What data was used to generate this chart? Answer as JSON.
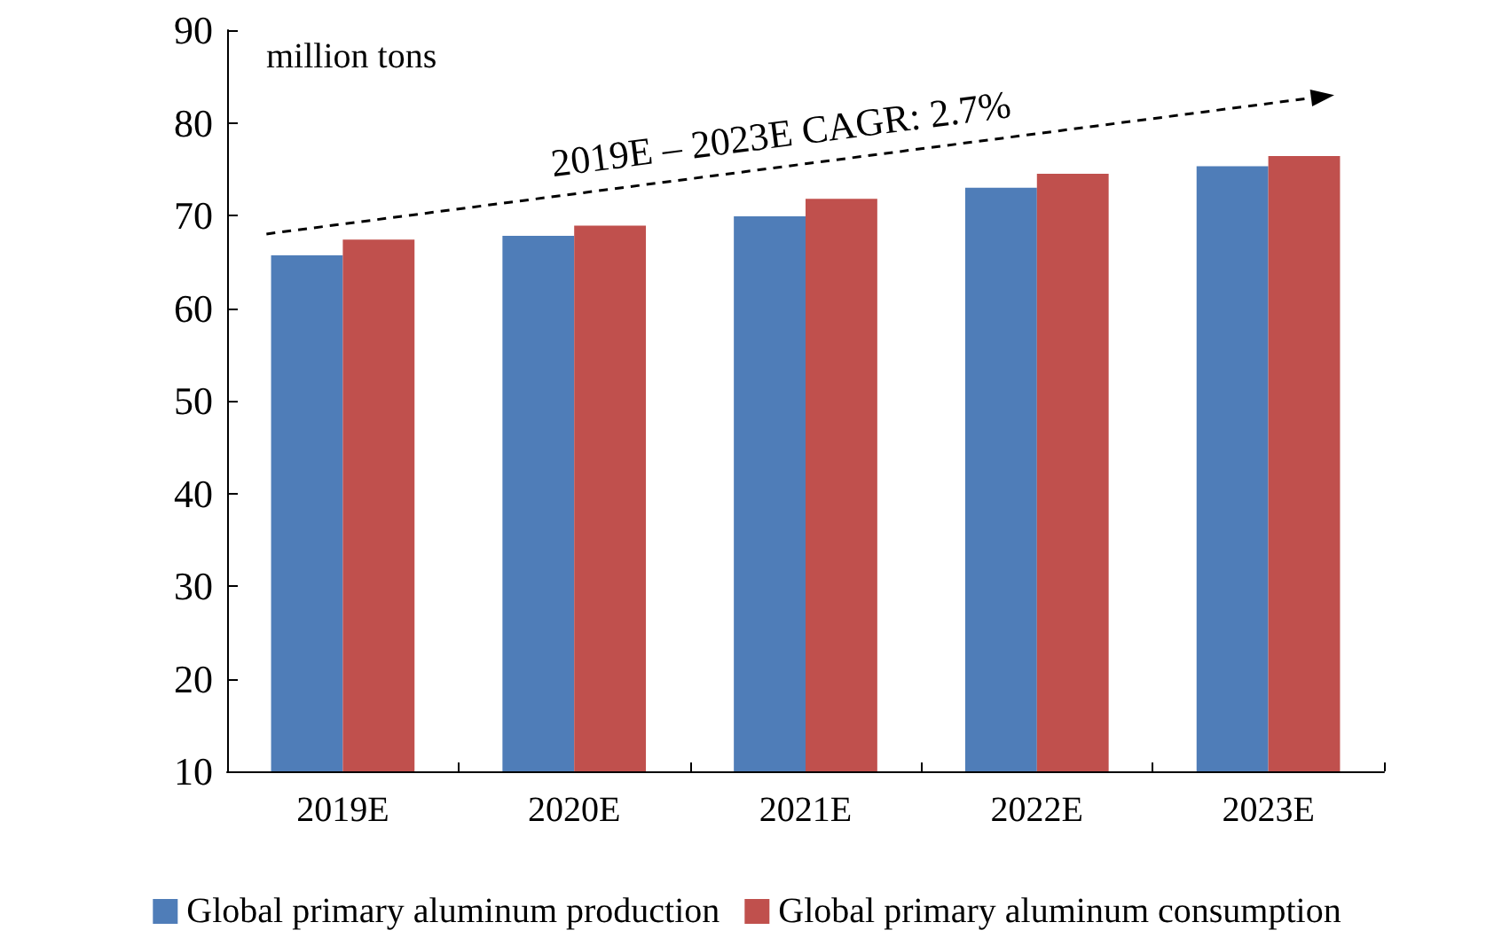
{
  "chart_data": {
    "type": "bar",
    "ylabel": "million tons",
    "categories": [
      "2019E",
      "2020E",
      "2021E",
      "2022E",
      "2023E"
    ],
    "series": [
      {
        "name": "Global primary aluminum production",
        "color": "#4f7db8",
        "values": [
          65.7,
          67.8,
          69.9,
          73.0,
          75.3
        ]
      },
      {
        "name": "Global primary aluminum consumption",
        "color": "#c0504d",
        "values": [
          67.4,
          68.9,
          71.8,
          74.5,
          76.4
        ]
      }
    ],
    "ylim": [
      10,
      90
    ],
    "yticks": [
      10,
      20,
      30,
      40,
      50,
      60,
      70,
      80,
      90
    ],
    "grid": false,
    "legend": "bottom",
    "annotations": [
      "2019E – 2023E CAGR: 2.7%"
    ]
  }
}
